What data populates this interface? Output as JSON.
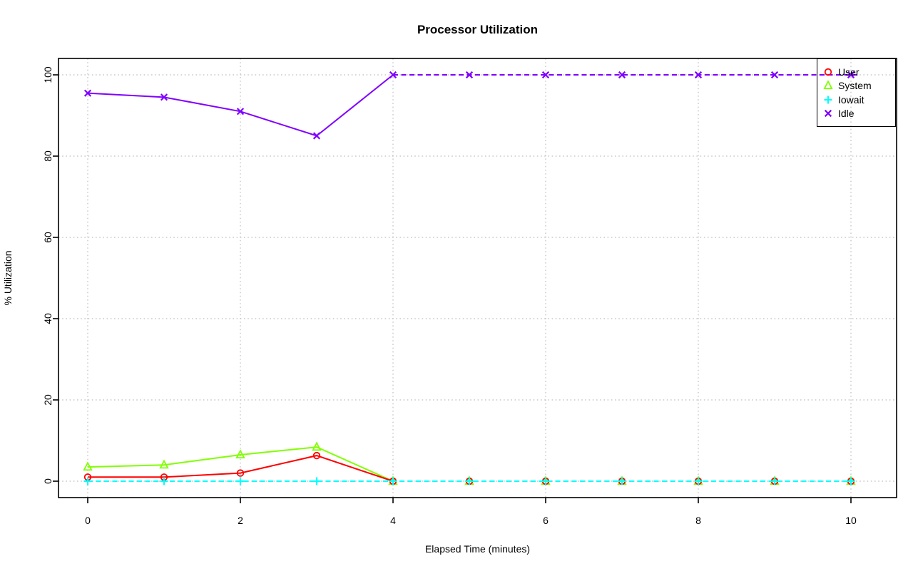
{
  "chart_data": {
    "type": "line",
    "title": "Processor Utilization",
    "xlabel": "Elapsed Time (minutes)",
    "ylabel": "% Utilization",
    "x": [
      0,
      1,
      2,
      3,
      4,
      5,
      6,
      7,
      8,
      9,
      10
    ],
    "xticks": [
      0,
      2,
      4,
      6,
      8,
      10
    ],
    "yticks": [
      0,
      20,
      40,
      60,
      80,
      100
    ],
    "xlim": [
      0,
      10
    ],
    "ylim": [
      0,
      100
    ],
    "grid": "dotted-at-ticks",
    "grid_color": "#bdbdbd",
    "legend_position": "topright",
    "draw_order": [
      1,
      0,
      2,
      3
    ],
    "series": [
      {
        "name": "User",
        "color": "#FF0000",
        "marker": "circle",
        "values": [
          1,
          1,
          2,
          6.3,
          0,
          0,
          0,
          0,
          0,
          0,
          0
        ],
        "segments": [
          {
            "from": 0,
            "to": 4,
            "style": "solid"
          }
        ]
      },
      {
        "name": "System",
        "color": "#80FF00",
        "marker": "triangle",
        "values": [
          3.5,
          4,
          6.5,
          8.4,
          0,
          0,
          0,
          0,
          0,
          0,
          0
        ],
        "segments": [
          {
            "from": 0,
            "to": 4,
            "style": "solid"
          }
        ]
      },
      {
        "name": "Iowait",
        "color": "#00FFFF",
        "marker": "plus",
        "values": [
          0,
          0,
          0,
          0,
          0,
          0,
          0,
          0,
          0,
          0,
          0
        ],
        "segments": [
          {
            "from": 0,
            "to": 10,
            "style": "dashed"
          }
        ]
      },
      {
        "name": "Idle",
        "color": "#8000FF",
        "marker": "x",
        "values": [
          95.5,
          94.5,
          91,
          85,
          100,
          100,
          100,
          100,
          100,
          100,
          100
        ],
        "segments": [
          {
            "from": 0,
            "to": 4,
            "style": "solid"
          },
          {
            "from": 4,
            "to": 10.1,
            "style": "dashed"
          }
        ]
      }
    ]
  }
}
